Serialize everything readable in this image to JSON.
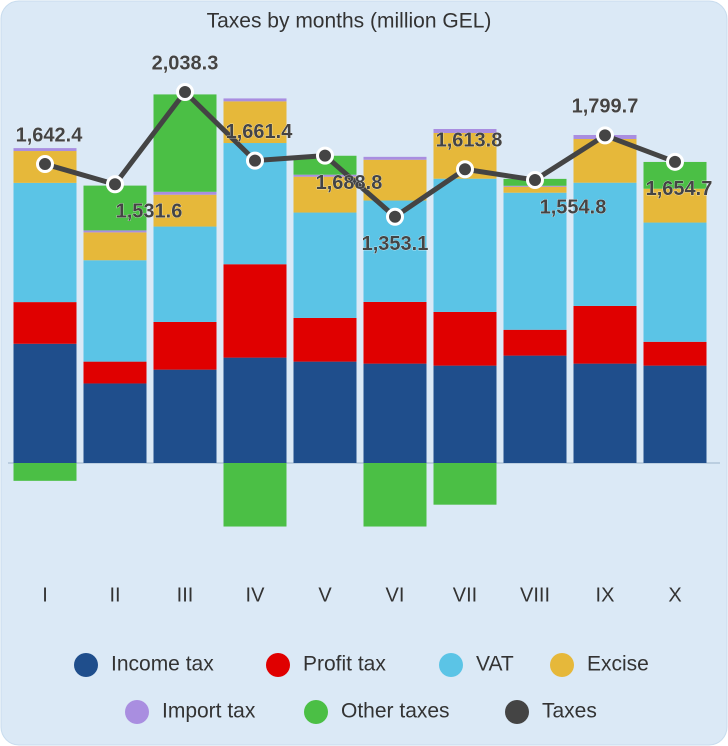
{
  "chart_data": {
    "type": "bar",
    "stacked": true,
    "title": "Taxes by months (million GEL)",
    "categories": [
      "I",
      "II",
      "III",
      "IV",
      "V",
      "VI",
      "VII",
      "VIII",
      "IX",
      "X"
    ],
    "series": [
      {
        "name": "Income tax",
        "color": "#1f4e8c",
        "values": [
          655,
          437,
          513,
          579,
          557,
          546,
          535,
          590,
          546,
          535
        ]
      },
      {
        "name": "Profit tax",
        "color": "#e00000",
        "values": [
          229,
          120,
          262,
          513,
          240,
          339,
          295,
          142,
          317,
          131
        ]
      },
      {
        "name": "VAT",
        "color": "#5bc4e6",
        "values": [
          655,
          557,
          524,
          666,
          579,
          557,
          732,
          753,
          677,
          655
        ]
      },
      {
        "name": "Excise",
        "color": "#e6b83a",
        "values": [
          175,
          153,
          175,
          229,
          197,
          224,
          251,
          33,
          240,
          186
        ]
      },
      {
        "name": "Import tax",
        "color": "#a98ee0",
        "values": [
          16,
          11,
          16,
          16,
          11,
          16,
          22,
          5,
          22,
          0
        ]
      },
      {
        "name": "Other taxes",
        "color": "#4bbf45",
        "values": [
          -98,
          246,
          535,
          -349,
          104,
          -349,
          -229,
          38,
          0,
          147
        ]
      },
      {
        "name": "Taxes",
        "type": "line",
        "color": "#444444",
        "values": [
          1642.4,
          1531.6,
          2038.3,
          1661.4,
          1688.8,
          1353.1,
          1613.8,
          1554.8,
          1799.7,
          1654.7
        ],
        "value_labels": [
          "1,642.4",
          "1,531.6",
          "2,038.3",
          "1,661.4",
          "1,688.8",
          "1,353.1",
          "1,613.8",
          "1,554.8",
          "1,799.7",
          "1,654.7"
        ]
      }
    ]
  }
}
